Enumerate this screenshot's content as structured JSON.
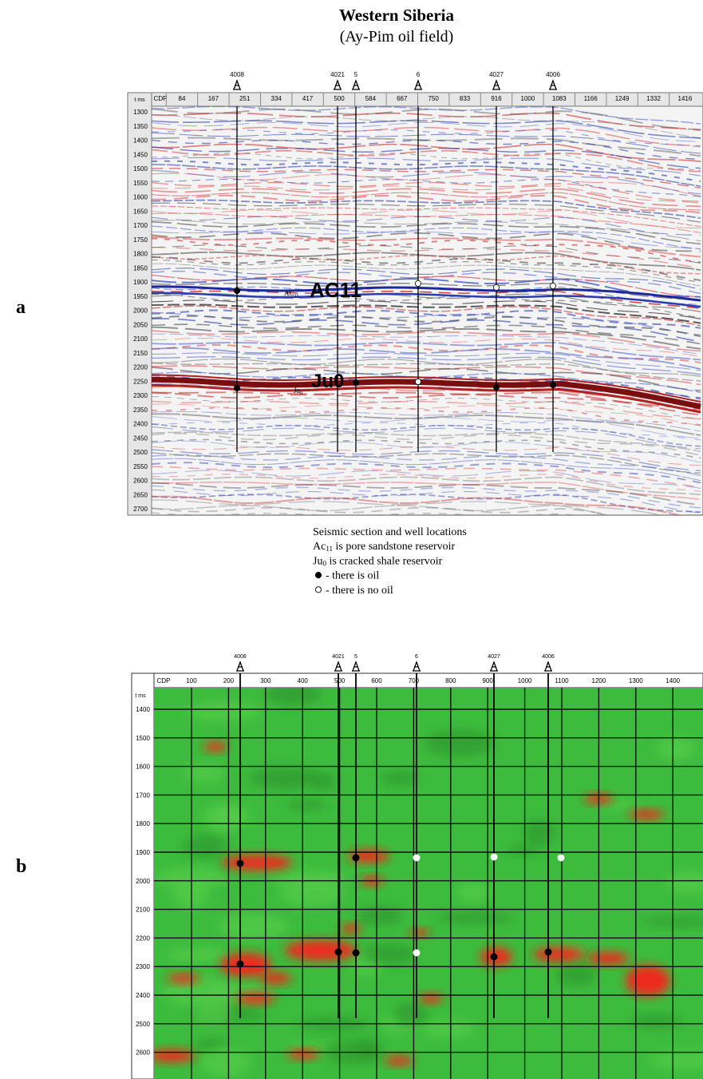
{
  "title": "Western Siberia",
  "subtitle": "(Ay-Pim oil field)",
  "panel_a": {
    "label": "a",
    "wells": [
      "4008",
      "4021",
      "5",
      "6",
      "4027",
      "4006"
    ],
    "cdp_title": "CDP",
    "time_title": "t ms",
    "cdp": [
      84,
      167,
      251,
      334,
      417,
      500,
      584,
      667,
      750,
      833,
      916,
      1000,
      1083,
      1166,
      1249,
      1332,
      1416
    ],
    "times": [
      1300,
      1350,
      1400,
      1450,
      1500,
      1550,
      1600,
      1650,
      1700,
      1750,
      1800,
      1850,
      1900,
      1950,
      2000,
      2050,
      2100,
      2150,
      2200,
      2250,
      2300,
      2350,
      2400,
      2450,
      2500,
      2550,
      2600,
      2650,
      2700
    ],
    "horizons": [
      {
        "label": "AC11",
        "abbr": "AC",
        "sub": "11"
      },
      {
        "label": "Ju0",
        "abbr": "Ju",
        "sub": "0"
      }
    ]
  },
  "caption": [
    "Seismic section and well locations",
    {
      "abbr": "Ac",
      "sub": "11",
      "text": " is pore sandstone reservoir"
    },
    {
      "abbr": "Ju",
      "sub": "0",
      "text": " is cracked shale reservoir"
    },
    "- there is oil",
    "- there is no oil"
  ],
  "panel_b": {
    "label": "b",
    "wells": [
      "4008",
      "4021",
      "5",
      "6",
      "4027",
      "4006"
    ],
    "cdp_title": "CDP",
    "time_title": "t ms",
    "cdp": [
      100,
      200,
      300,
      400,
      500,
      600,
      700,
      800,
      900,
      1000,
      1100,
      1200,
      1300,
      1400
    ],
    "times": [
      1400,
      1500,
      1600,
      1700,
      1800,
      1900,
      2000,
      2100,
      2200,
      2300,
      2400,
      2500,
      2600
    ]
  }
}
